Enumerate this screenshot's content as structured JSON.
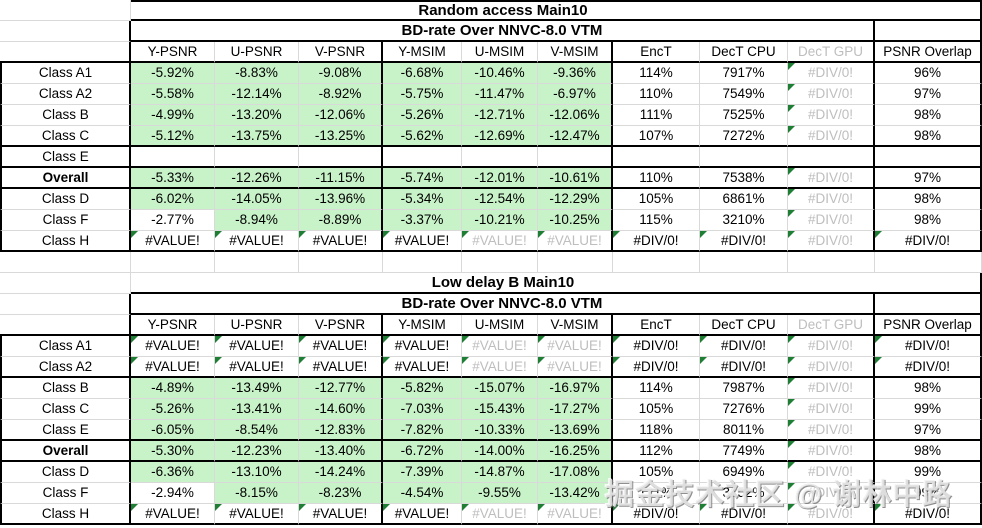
{
  "watermark": "掘金技术社区 @ 谢林中路",
  "colors": {
    "green_bg": "#C8F2C8",
    "gray_text": "#BEBEBE",
    "error_triangle": "#1E7E34",
    "grid_line": "#D9D9D9",
    "border": "#000000"
  },
  "columns": [
    "Y-PSNR",
    "U-PSNR",
    "V-PSNR",
    "Y-MSIM",
    "U-MSIM",
    "V-MSIM",
    "EncT",
    "DecT CPU",
    "DecT GPU",
    "PSNR Overlap"
  ],
  "tables": [
    {
      "title": "Random access Main10",
      "subtitle": "BD-rate Over NNVC-8.0 VTM",
      "rows": [
        {
          "label": "Class A1",
          "cells": [
            {
              "t": "-5.92%",
              "bg": "g"
            },
            {
              "t": "-8.83%",
              "bg": "g"
            },
            {
              "t": "-9.08%",
              "bg": "g"
            },
            {
              "t": "-6.68%",
              "bg": "g"
            },
            {
              "t": "-10.46%",
              "bg": "g"
            },
            {
              "t": "-9.36%",
              "bg": "g"
            },
            {
              "t": "114%"
            },
            {
              "t": "7917%"
            },
            {
              "t": "#DIV/0!",
              "gray": true,
              "tri": true
            },
            {
              "t": "96%"
            }
          ]
        },
        {
          "label": "Class A2",
          "cells": [
            {
              "t": "-5.58%",
              "bg": "g"
            },
            {
              "t": "-12.14%",
              "bg": "g"
            },
            {
              "t": "-8.92%",
              "bg": "g"
            },
            {
              "t": "-5.75%",
              "bg": "g"
            },
            {
              "t": "-11.47%",
              "bg": "g"
            },
            {
              "t": "-6.97%",
              "bg": "g"
            },
            {
              "t": "110%"
            },
            {
              "t": "7549%"
            },
            {
              "t": "#DIV/0!",
              "gray": true,
              "tri": true
            },
            {
              "t": "97%"
            }
          ]
        },
        {
          "label": "Class B",
          "cells": [
            {
              "t": "-4.99%",
              "bg": "g"
            },
            {
              "t": "-13.20%",
              "bg": "g"
            },
            {
              "t": "-12.06%",
              "bg": "g"
            },
            {
              "t": "-5.26%",
              "bg": "g"
            },
            {
              "t": "-12.71%",
              "bg": "g"
            },
            {
              "t": "-12.06%",
              "bg": "g"
            },
            {
              "t": "111%"
            },
            {
              "t": "7525%"
            },
            {
              "t": "#DIV/0!",
              "gray": true,
              "tri": true
            },
            {
              "t": "98%"
            }
          ]
        },
        {
          "label": "Class C",
          "thick_bottom": true,
          "cells": [
            {
              "t": "-5.12%",
              "bg": "g"
            },
            {
              "t": "-13.75%",
              "bg": "g"
            },
            {
              "t": "-13.25%",
              "bg": "g"
            },
            {
              "t": "-5.62%",
              "bg": "g"
            },
            {
              "t": "-12.69%",
              "bg": "g"
            },
            {
              "t": "-12.47%",
              "bg": "g"
            },
            {
              "t": "107%"
            },
            {
              "t": "7272%"
            },
            {
              "t": "#DIV/0!",
              "gray": true,
              "tri": true
            },
            {
              "t": "98%"
            }
          ]
        },
        {
          "label": "Class E",
          "thick_bottom": true,
          "cells": [
            {
              "t": ""
            },
            {
              "t": ""
            },
            {
              "t": ""
            },
            {
              "t": ""
            },
            {
              "t": ""
            },
            {
              "t": ""
            },
            {
              "t": ""
            },
            {
              "t": ""
            },
            {
              "t": ""
            },
            {
              "t": ""
            }
          ]
        },
        {
          "label": "Overall",
          "bold": true,
          "thick_bottom": true,
          "cells": [
            {
              "t": "-5.33%",
              "bg": "g"
            },
            {
              "t": "-12.26%",
              "bg": "g"
            },
            {
              "t": "-11.15%",
              "bg": "g"
            },
            {
              "t": "-5.74%",
              "bg": "g"
            },
            {
              "t": "-12.01%",
              "bg": "g"
            },
            {
              "t": "-10.61%",
              "bg": "g"
            },
            {
              "t": "110%"
            },
            {
              "t": "7538%"
            },
            {
              "t": "#DIV/0!",
              "gray": true,
              "tri": true
            },
            {
              "t": "97%"
            }
          ]
        },
        {
          "label": "Class D",
          "cells": [
            {
              "t": "-6.02%",
              "bg": "g"
            },
            {
              "t": "-14.05%",
              "bg": "g"
            },
            {
              "t": "-13.96%",
              "bg": "g"
            },
            {
              "t": "-5.34%",
              "bg": "g"
            },
            {
              "t": "-12.54%",
              "bg": "g"
            },
            {
              "t": "-12.29%",
              "bg": "g"
            },
            {
              "t": "105%"
            },
            {
              "t": "6861%"
            },
            {
              "t": "#DIV/0!",
              "gray": true,
              "tri": true
            },
            {
              "t": "98%"
            }
          ]
        },
        {
          "label": "Class F",
          "cells": [
            {
              "t": "-2.77%"
            },
            {
              "t": "-8.94%",
              "bg": "g"
            },
            {
              "t": "-8.89%",
              "bg": "g"
            },
            {
              "t": "-3.37%",
              "bg": "g"
            },
            {
              "t": "-10.21%",
              "bg": "g"
            },
            {
              "t": "-10.25%",
              "bg": "g"
            },
            {
              "t": "115%"
            },
            {
              "t": "3210%"
            },
            {
              "t": "#DIV/0!",
              "gray": true,
              "tri": true
            },
            {
              "t": "98%"
            }
          ]
        },
        {
          "label": "Class H",
          "thick_bottom": true,
          "cells": [
            {
              "t": "#VALUE!",
              "tri": true
            },
            {
              "t": "#VALUE!",
              "tri": true
            },
            {
              "t": "#VALUE!",
              "tri": true
            },
            {
              "t": "#VALUE!",
              "tri": true
            },
            {
              "t": "#VALUE!",
              "gray": true,
              "tri": true
            },
            {
              "t": "#VALUE!",
              "gray": true,
              "tri": true
            },
            {
              "t": "#DIV/0!",
              "tri": true
            },
            {
              "t": "#DIV/0!",
              "tri": true
            },
            {
              "t": "#DIV/0!",
              "gray": true,
              "tri": true
            },
            {
              "t": "#DIV/0!",
              "tri": true
            }
          ]
        }
      ]
    },
    {
      "title": "Low delay B Main10",
      "subtitle": "BD-rate Over NNVC-8.0 VTM",
      "rows": [
        {
          "label": "Class A1",
          "cells": [
            {
              "t": "#VALUE!",
              "tri": true
            },
            {
              "t": "#VALUE!",
              "tri": true
            },
            {
              "t": "#VALUE!",
              "tri": true
            },
            {
              "t": "#VALUE!",
              "tri": true
            },
            {
              "t": "#VALUE!",
              "gray": true,
              "tri": true
            },
            {
              "t": "#VALUE!",
              "gray": true,
              "tri": true
            },
            {
              "t": "#DIV/0!",
              "tri": true
            },
            {
              "t": "#DIV/0!",
              "tri": true
            },
            {
              "t": "#DIV/0!",
              "gray": true,
              "tri": true
            },
            {
              "t": "#DIV/0!",
              "tri": true
            }
          ]
        },
        {
          "label": "Class A2",
          "thick_bottom": true,
          "cells": [
            {
              "t": "#VALUE!",
              "tri": true
            },
            {
              "t": "#VALUE!",
              "tri": true
            },
            {
              "t": "#VALUE!",
              "tri": true
            },
            {
              "t": "#VALUE!",
              "tri": true
            },
            {
              "t": "#VALUE!",
              "gray": true,
              "tri": true
            },
            {
              "t": "#VALUE!",
              "gray": true,
              "tri": true
            },
            {
              "t": "#DIV/0!",
              "tri": true
            },
            {
              "t": "#DIV/0!",
              "tri": true
            },
            {
              "t": "#DIV/0!",
              "gray": true,
              "tri": true
            },
            {
              "t": "#DIV/0!",
              "tri": true
            }
          ]
        },
        {
          "label": "Class B",
          "cells": [
            {
              "t": "-4.89%",
              "bg": "g"
            },
            {
              "t": "-13.49%",
              "bg": "g"
            },
            {
              "t": "-12.77%",
              "bg": "g"
            },
            {
              "t": "-5.82%",
              "bg": "g"
            },
            {
              "t": "-15.07%",
              "bg": "g"
            },
            {
              "t": "-16.97%",
              "bg": "g"
            },
            {
              "t": "114%"
            },
            {
              "t": "7987%"
            },
            {
              "t": "#DIV/0!",
              "gray": true,
              "tri": true
            },
            {
              "t": "98%"
            }
          ]
        },
        {
          "label": "Class C",
          "cells": [
            {
              "t": "-5.26%",
              "bg": "g"
            },
            {
              "t": "-13.41%",
              "bg": "g"
            },
            {
              "t": "-14.60%",
              "bg": "g"
            },
            {
              "t": "-7.03%",
              "bg": "g"
            },
            {
              "t": "-15.43%",
              "bg": "g"
            },
            {
              "t": "-17.27%",
              "bg": "g"
            },
            {
              "t": "105%"
            },
            {
              "t": "7276%"
            },
            {
              "t": "#DIV/0!",
              "gray": true,
              "tri": true
            },
            {
              "t": "99%"
            }
          ]
        },
        {
          "label": "Class E",
          "thick_bottom": true,
          "cells": [
            {
              "t": "-6.05%",
              "bg": "g"
            },
            {
              "t": "-8.54%",
              "bg": "g"
            },
            {
              "t": "-12.83%",
              "bg": "g"
            },
            {
              "t": "-7.82%",
              "bg": "g"
            },
            {
              "t": "-10.33%",
              "bg": "g"
            },
            {
              "t": "-13.69%",
              "bg": "g"
            },
            {
              "t": "118%"
            },
            {
              "t": "8011%"
            },
            {
              "t": "#DIV/0!",
              "gray": true,
              "tri": true
            },
            {
              "t": "97%"
            }
          ]
        },
        {
          "label": "Overall",
          "bold": true,
          "thick_bottom": true,
          "cells": [
            {
              "t": "-5.30%",
              "bg": "g"
            },
            {
              "t": "-12.23%",
              "bg": "g"
            },
            {
              "t": "-13.40%",
              "bg": "g"
            },
            {
              "t": "-6.72%",
              "bg": "g"
            },
            {
              "t": "-14.00%",
              "bg": "g"
            },
            {
              "t": "-16.25%",
              "bg": "g"
            },
            {
              "t": "112%"
            },
            {
              "t": "7749%"
            },
            {
              "t": "#DIV/0!",
              "gray": true,
              "tri": true
            },
            {
              "t": "98%"
            }
          ]
        },
        {
          "label": "Class D",
          "cells": [
            {
              "t": "-6.36%",
              "bg": "g"
            },
            {
              "t": "-13.10%",
              "bg": "g"
            },
            {
              "t": "-14.24%",
              "bg": "g"
            },
            {
              "t": "-7.39%",
              "bg": "g"
            },
            {
              "t": "-14.87%",
              "bg": "g"
            },
            {
              "t": "-17.08%",
              "bg": "g"
            },
            {
              "t": "105%"
            },
            {
              "t": "6949%"
            },
            {
              "t": "#DIV/0!",
              "gray": true,
              "tri": true
            },
            {
              "t": "99%"
            }
          ]
        },
        {
          "label": "Class F",
          "cells": [
            {
              "t": "-2.94%"
            },
            {
              "t": "-8.15%",
              "bg": "g"
            },
            {
              "t": "-8.23%",
              "bg": "g"
            },
            {
              "t": "-4.54%",
              "bg": "g"
            },
            {
              "t": "-9.55%",
              "bg": "g"
            },
            {
              "t": "-13.42%",
              "bg": "g"
            },
            {
              "t": "121%"
            },
            {
              "t": "3152%"
            },
            {
              "t": "#DIV/0!",
              "gray": true,
              "tri": true
            },
            {
              "t": "99%"
            }
          ]
        },
        {
          "label": "Class H",
          "thick_bottom": true,
          "cells": [
            {
              "t": "#VALUE!",
              "tri": true
            },
            {
              "t": "#VALUE!",
              "tri": true
            },
            {
              "t": "#VALUE!",
              "tri": true
            },
            {
              "t": "#VALUE!",
              "tri": true
            },
            {
              "t": "#VALUE!",
              "gray": true,
              "tri": true
            },
            {
              "t": "#VALUE!",
              "gray": true,
              "tri": true
            },
            {
              "t": "#DIV/0!",
              "tri": true
            },
            {
              "t": "#DIV/0!",
              "tri": true
            },
            {
              "t": "#DIV/0!",
              "gray": true,
              "tri": true
            },
            {
              "t": "#DIV/0!",
              "tri": true
            }
          ]
        }
      ]
    }
  ]
}
